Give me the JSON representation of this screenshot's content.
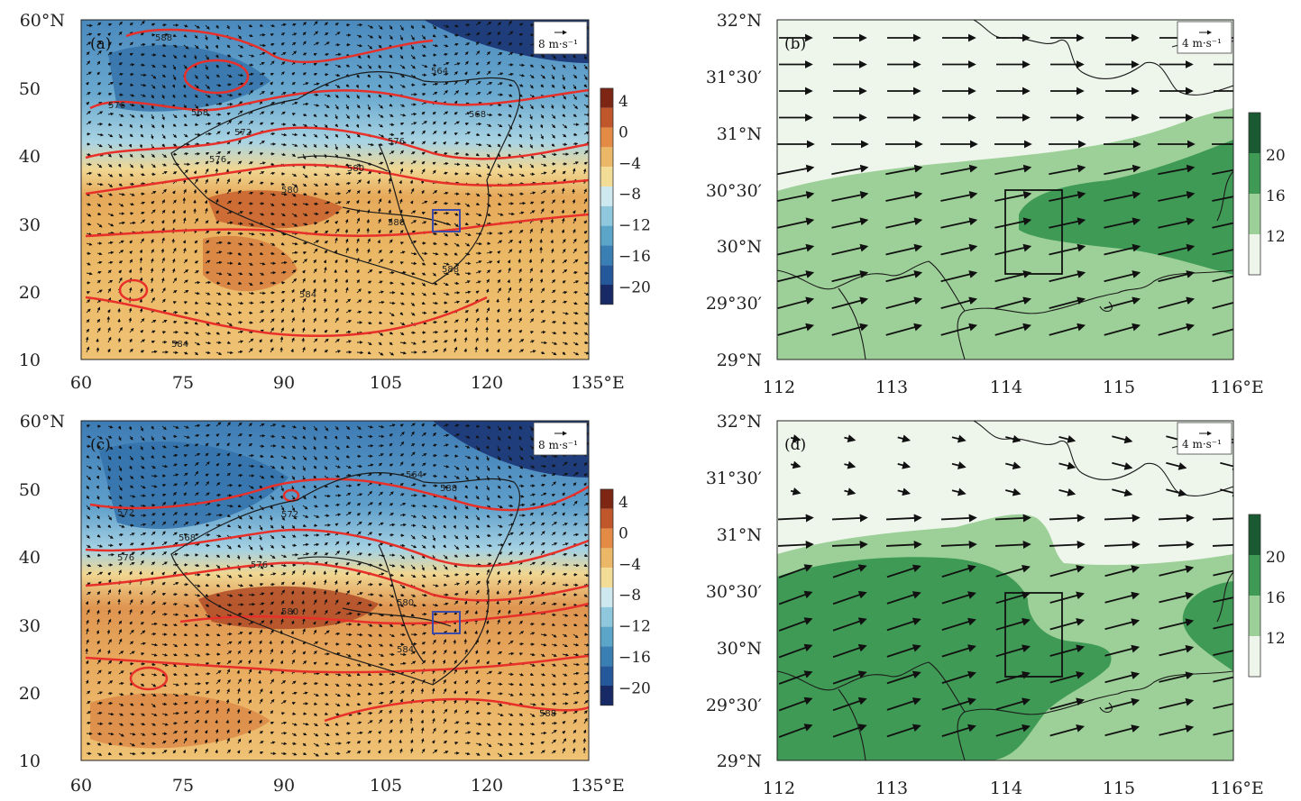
{
  "panels": [
    {
      "id": "a",
      "label": "(a)",
      "kind": "synoptic",
      "scale_label": "8 m·s⁻¹",
      "x_ticks": [
        "60",
        "75",
        "90",
        "105",
        "120",
        "135°E"
      ],
      "y_ticks": [
        "60°N",
        "50",
        "40",
        "30",
        "20",
        "10"
      ],
      "contour_labels": [
        "588",
        "568",
        "572",
        "576",
        "564",
        "568",
        "576",
        "580",
        "580",
        "584",
        "580",
        "584",
        "588",
        "576"
      ]
    },
    {
      "id": "b",
      "label": "(b)",
      "kind": "regional",
      "scale_label": "4 m·s⁻¹",
      "x_ticks": [
        "112",
        "113",
        "114",
        "115",
        "116°E"
      ],
      "y_ticks": [
        "32°N",
        "31°30′",
        "31°N",
        "30°30′",
        "30°N",
        "29°30′",
        "29°N"
      ]
    },
    {
      "id": "c",
      "label": "(c)",
      "kind": "synoptic",
      "scale_label": "8 m·s⁻¹",
      "x_ticks": [
        "60",
        "75",
        "90",
        "105",
        "120",
        "135°E"
      ],
      "y_ticks": [
        "60°N",
        "50",
        "40",
        "30",
        "20",
        "10"
      ],
      "contour_labels": [
        "572",
        "568",
        "576",
        "572",
        "576",
        "580",
        "580",
        "588",
        "584",
        "588",
        "564"
      ]
    },
    {
      "id": "d",
      "label": "(d)",
      "kind": "regional",
      "scale_label": "4 m·s⁻¹",
      "x_ticks": [
        "112",
        "113",
        "114",
        "115",
        "116°E"
      ],
      "y_ticks": [
        "32°N",
        "31°30′",
        "31°N",
        "30°30′",
        "30°N",
        "29°30′",
        "29°N"
      ]
    }
  ],
  "colorbar_temp": {
    "labels": [
      "4",
      "0",
      "−4",
      "−8",
      "−12",
      "−16",
      "−20"
    ],
    "colors": [
      "#7d2614",
      "#c0572a",
      "#e38b45",
      "#eab866",
      "#f3dc95",
      "#cde9ef",
      "#8fc8dc",
      "#5aa5c8",
      "#3a7fb3",
      "#25589a",
      "#182a66"
    ]
  },
  "colorbar_green": {
    "labels": [
      "20",
      "16",
      "12"
    ],
    "colors": [
      "#1a5a33",
      "#3f9a55",
      "#9dd098",
      "#eef6ec"
    ]
  },
  "colors": {
    "contour": "#e8302a",
    "box": "#3a4aa8",
    "arrow": "#111111"
  }
}
